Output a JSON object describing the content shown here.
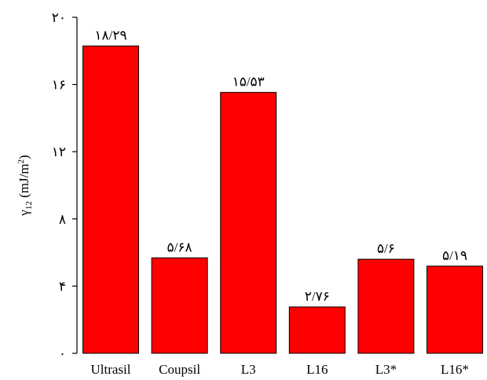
{
  "chart_data": {
    "type": "bar",
    "y_label_parts": [
      "γ",
      "12",
      " (mJ/m",
      "2",
      ")"
    ],
    "categories": [
      "Ultrasil",
      "Coupsil",
      "L3",
      "L16",
      "L3*",
      "L16*"
    ],
    "values": [
      18.29,
      5.68,
      15.53,
      2.76,
      5.6,
      5.19
    ],
    "value_labels": [
      "۱۸/۲۹",
      "۵/۶۸",
      "۱۵/۵۳",
      "۲/۷۶",
      "۵/۶",
      "۵/۱۹"
    ],
    "color": "#ff0000",
    "ylim": [
      0,
      20
    ],
    "yticks": [
      {
        "value": 0,
        "label": "۰"
      },
      {
        "value": 4,
        "label": "۴"
      },
      {
        "value": 8,
        "label": "۸"
      },
      {
        "value": 12,
        "label": "۱۲"
      },
      {
        "value": 16,
        "label": "۱۶"
      },
      {
        "value": 20,
        "label": "۲۰"
      }
    ],
    "grid": false
  }
}
